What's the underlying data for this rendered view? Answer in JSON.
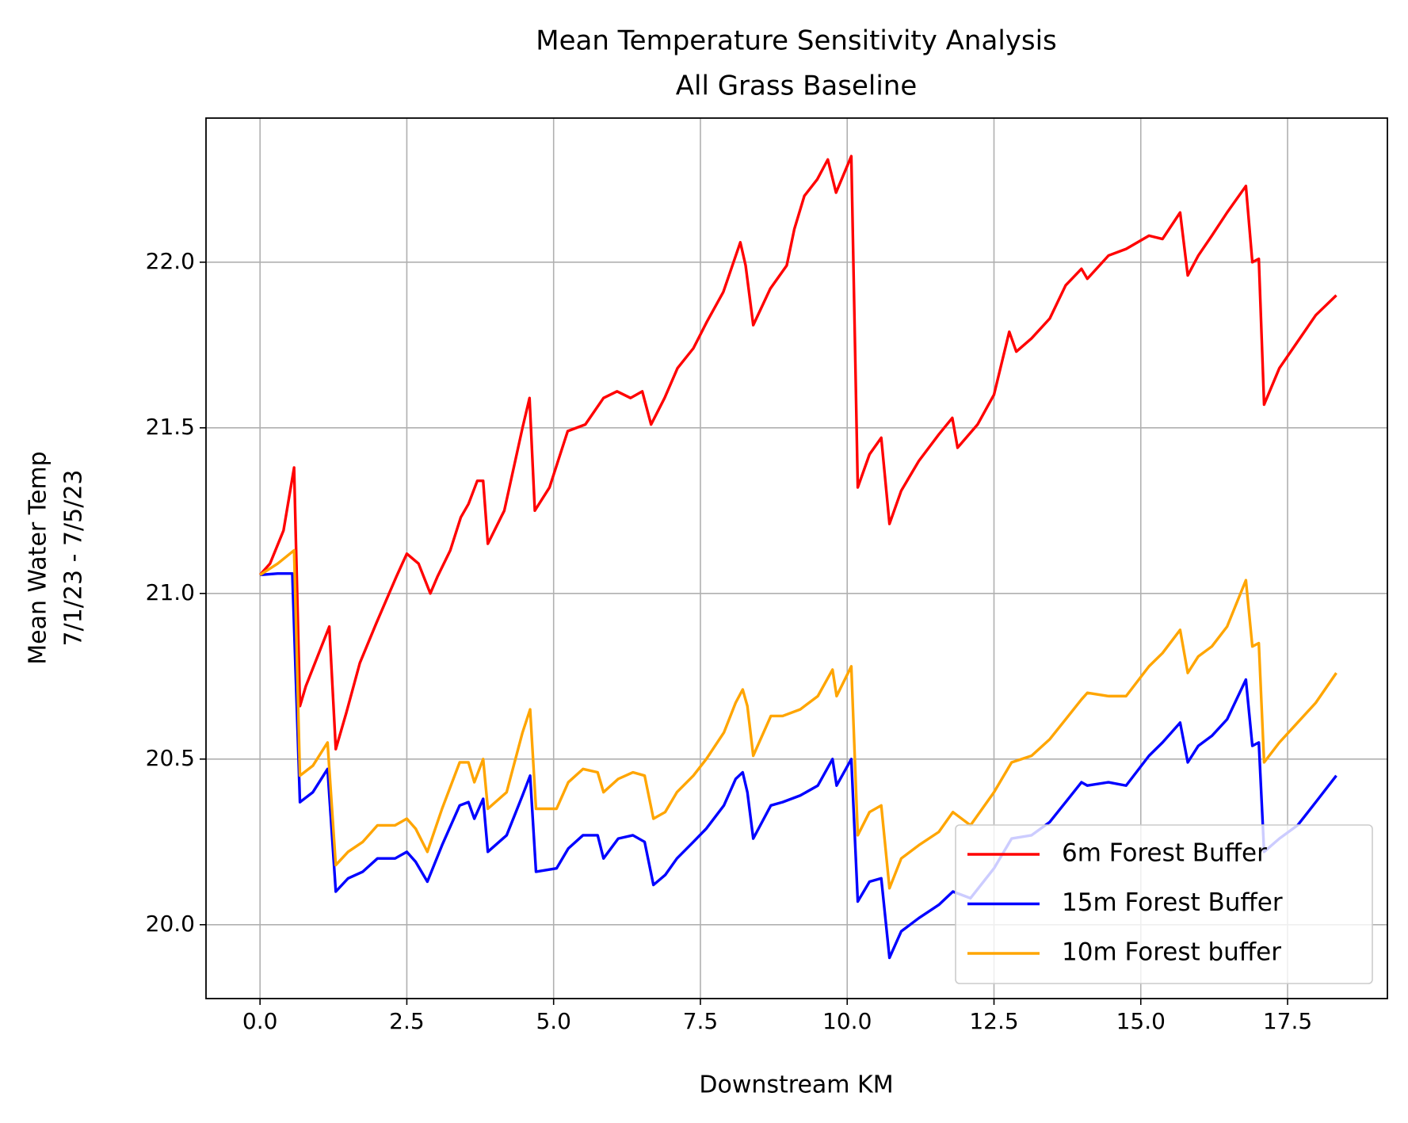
{
  "chart_data": {
    "type": "line",
    "title": [
      "Mean Temperature Sensitivity Analysis",
      "All Grass Baseline"
    ],
    "xlabel": "Downstream KM",
    "ylabel": [
      "Mean Water Temp",
      "7/1/23 - 7/5/23"
    ],
    "xlim": [
      -0.92,
      19.2
    ],
    "ylim": [
      19.777,
      22.435
    ],
    "xticks": [
      {
        "value": 0,
        "label": "0.0"
      },
      {
        "value": 2.5,
        "label": "2.5"
      },
      {
        "value": 5,
        "label": "5.0"
      },
      {
        "value": 7.5,
        "label": "7.5"
      },
      {
        "value": 10,
        "label": "10.0"
      },
      {
        "value": 12.5,
        "label": "12.5"
      },
      {
        "value": 15,
        "label": "15.0"
      },
      {
        "value": 17.5,
        "label": "17.5"
      }
    ],
    "yticks": [
      {
        "value": 20,
        "label": "20.0"
      },
      {
        "value": 20.5,
        "label": "20.5"
      },
      {
        "value": 21,
        "label": "21.0"
      },
      {
        "value": 21.5,
        "label": "21.5"
      },
      {
        "value": 22,
        "label": "22.0"
      }
    ],
    "grid": true,
    "legend": "lower right",
    "series": [
      {
        "name": "6m Forest Buffer",
        "color": "#ff0000",
        "x": [
          0,
          0.17,
          0.4,
          0.58,
          0.68,
          0.78,
          1.18,
          1.29,
          1.47,
          1.7,
          1.98,
          2.32,
          2.5,
          2.7,
          2.9,
          3.02,
          3.24,
          3.42,
          3.55,
          3.7,
          3.8,
          3.88,
          4.16,
          4.47,
          4.59,
          4.68,
          4.93,
          5.24,
          5.54,
          5.85,
          6.08,
          6.31,
          6.51,
          6.66,
          6.89,
          7.11,
          7.38,
          7.61,
          7.89,
          8.18,
          8.27,
          8.4,
          8.69,
          8.97,
          9.1,
          9.27,
          9.49,
          9.67,
          9.81,
          10.07,
          10.18,
          10.38,
          10.58,
          10.72,
          10.92,
          11.22,
          11.56,
          11.79,
          11.88,
          12.22,
          12.5,
          12.76,
          12.88,
          13.14,
          13.45,
          13.72,
          13.99,
          14.09,
          14.45,
          14.75,
          15.14,
          15.37,
          15.67,
          15.8,
          15.98,
          16.21,
          16.47,
          16.79,
          16.9,
          17.01,
          17.1,
          17.36,
          17.67,
          17.98,
          18.33
        ],
        "values": [
          21.056,
          21.09,
          21.19,
          21.38,
          20.66,
          20.72,
          20.9,
          20.53,
          20.64,
          20.79,
          20.91,
          21.05,
          21.12,
          21.09,
          21.0,
          21.05,
          21.13,
          21.23,
          21.27,
          21.34,
          21.34,
          21.15,
          21.25,
          21.5,
          21.59,
          21.25,
          21.32,
          21.49,
          21.51,
          21.59,
          21.61,
          21.59,
          21.61,
          21.51,
          21.59,
          21.68,
          21.74,
          21.82,
          21.91,
          22.06,
          21.99,
          21.81,
          21.92,
          21.99,
          22.1,
          22.2,
          22.25,
          22.31,
          22.21,
          22.32,
          21.32,
          21.42,
          21.47,
          21.21,
          21.31,
          21.4,
          21.48,
          21.53,
          21.44,
          21.51,
          21.6,
          21.79,
          21.73,
          21.77,
          21.83,
          21.93,
          21.98,
          21.95,
          22.02,
          22.04,
          22.08,
          22.07,
          22.15,
          21.96,
          22.02,
          22.08,
          22.15,
          22.23,
          22.0,
          22.01,
          21.57,
          21.68,
          21.76,
          21.84,
          21.9
        ]
      },
      {
        "name": "15m Forest Buffer",
        "color": "#0000ff",
        "x": [
          0,
          0.3,
          0.55,
          0.68,
          0.9,
          1.15,
          1.29,
          1.5,
          1.75,
          2.0,
          2.3,
          2.5,
          2.65,
          2.85,
          3.1,
          3.4,
          3.55,
          3.65,
          3.8,
          3.88,
          4.2,
          4.47,
          4.6,
          4.7,
          5.05,
          5.25,
          5.5,
          5.75,
          5.85,
          6.1,
          6.35,
          6.55,
          6.7,
          6.9,
          7.1,
          7.38,
          7.6,
          7.9,
          8.1,
          8.22,
          8.3,
          8.4,
          8.7,
          8.9,
          9.2,
          9.5,
          9.75,
          9.82,
          10.07,
          10.18,
          10.38,
          10.58,
          10.72,
          10.92,
          11.22,
          11.56,
          11.8,
          12.1,
          12.5,
          12.8,
          13.14,
          13.45,
          13.72,
          13.99,
          14.09,
          14.45,
          14.75,
          15.14,
          15.37,
          15.67,
          15.8,
          15.98,
          16.21,
          16.47,
          16.79,
          16.9,
          17.01,
          17.1,
          17.36,
          17.67,
          17.98,
          18.33
        ],
        "values": [
          21.056,
          21.06,
          21.06,
          20.37,
          20.4,
          20.47,
          20.1,
          20.14,
          20.16,
          20.2,
          20.2,
          20.22,
          20.19,
          20.13,
          20.24,
          20.36,
          20.37,
          20.32,
          20.38,
          20.22,
          20.27,
          20.39,
          20.45,
          20.16,
          20.17,
          20.23,
          20.27,
          20.27,
          20.2,
          20.26,
          20.27,
          20.25,
          20.12,
          20.15,
          20.2,
          20.25,
          20.29,
          20.36,
          20.44,
          20.46,
          20.4,
          20.26,
          20.36,
          20.37,
          20.39,
          20.42,
          20.5,
          20.42,
          20.5,
          20.07,
          20.13,
          20.14,
          19.9,
          19.98,
          20.02,
          20.06,
          20.1,
          20.08,
          20.17,
          20.26,
          20.27,
          20.31,
          20.37,
          20.43,
          20.42,
          20.43,
          20.42,
          20.51,
          20.55,
          20.61,
          20.49,
          20.54,
          20.57,
          20.62,
          20.74,
          20.54,
          20.55,
          20.22,
          20.26,
          20.3,
          20.37,
          20.45
        ]
      },
      {
        "name": "10m Forest buffer",
        "color": "#ffa500",
        "x": [
          0,
          0.3,
          0.58,
          0.68,
          0.9,
          1.15,
          1.29,
          1.5,
          1.75,
          2.0,
          2.3,
          2.5,
          2.65,
          2.85,
          3.1,
          3.4,
          3.55,
          3.65,
          3.8,
          3.88,
          4.2,
          4.47,
          4.6,
          4.7,
          5.05,
          5.25,
          5.5,
          5.75,
          5.85,
          6.1,
          6.35,
          6.55,
          6.7,
          6.9,
          7.1,
          7.38,
          7.6,
          7.9,
          8.1,
          8.22,
          8.3,
          8.4,
          8.7,
          8.9,
          9.2,
          9.5,
          9.75,
          9.82,
          10.07,
          10.18,
          10.38,
          10.58,
          10.72,
          10.92,
          11.22,
          11.56,
          11.8,
          12.1,
          12.5,
          12.8,
          13.14,
          13.45,
          13.72,
          13.99,
          14.09,
          14.45,
          14.75,
          15.14,
          15.37,
          15.67,
          15.8,
          15.98,
          16.21,
          16.47,
          16.79,
          16.9,
          17.01,
          17.1,
          17.36,
          17.67,
          17.98,
          18.33
        ],
        "values": [
          21.056,
          21.09,
          21.13,
          20.45,
          20.48,
          20.55,
          20.18,
          20.22,
          20.25,
          20.3,
          20.3,
          20.32,
          20.29,
          20.22,
          20.35,
          20.49,
          20.49,
          20.43,
          20.5,
          20.35,
          20.4,
          20.58,
          20.65,
          20.35,
          20.35,
          20.43,
          20.47,
          20.46,
          20.4,
          20.44,
          20.46,
          20.45,
          20.32,
          20.34,
          20.4,
          20.45,
          20.5,
          20.58,
          20.67,
          20.71,
          20.66,
          20.51,
          20.63,
          20.63,
          20.65,
          20.69,
          20.77,
          20.69,
          20.78,
          20.27,
          20.34,
          20.36,
          20.11,
          20.2,
          20.24,
          20.28,
          20.34,
          20.3,
          20.4,
          20.49,
          20.51,
          20.56,
          20.62,
          20.68,
          20.7,
          20.69,
          20.69,
          20.78,
          20.82,
          20.89,
          20.76,
          20.81,
          20.84,
          20.9,
          21.04,
          20.84,
          20.85,
          20.49,
          20.55,
          20.61,
          20.67,
          20.76
        ]
      }
    ]
  }
}
